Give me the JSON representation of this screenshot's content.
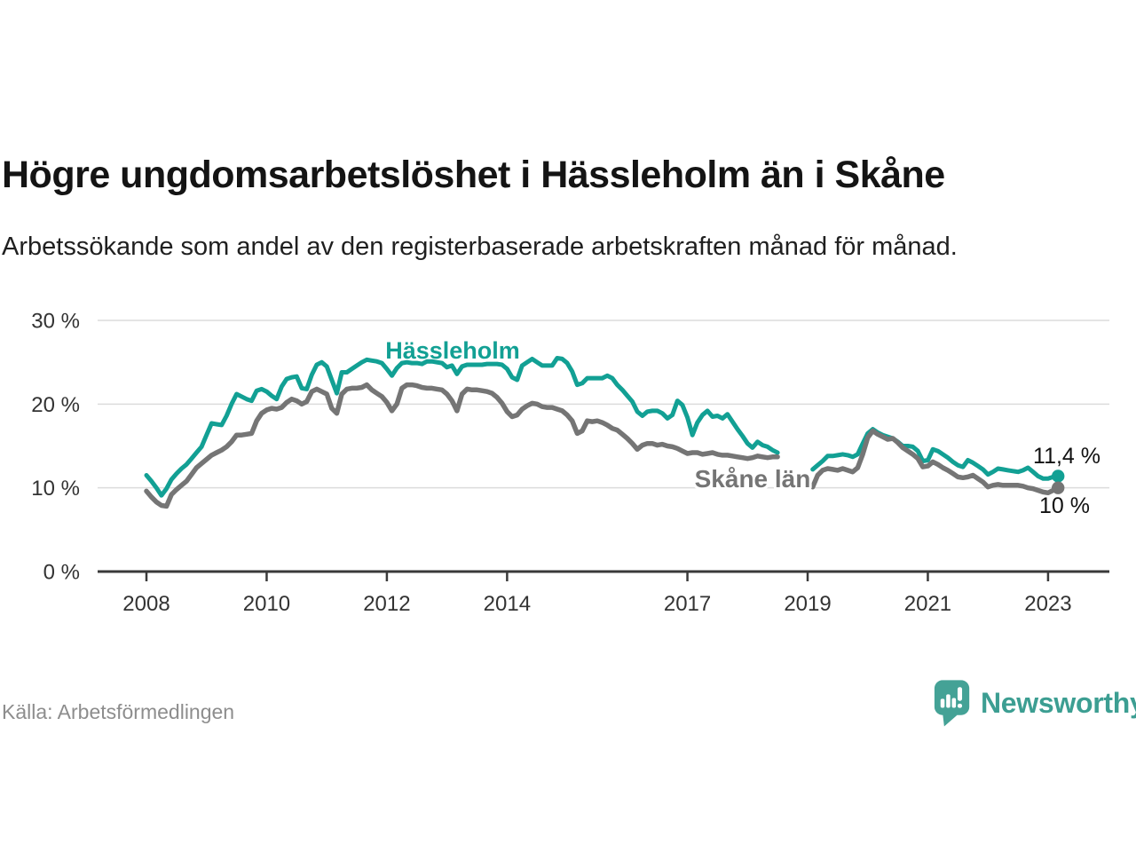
{
  "header": {
    "title": "Högre ungdomsarbetslöshet i Hässleholm än i Skåne",
    "subtitle": "Arbetssökande som andel av den registerbaserade arbetskraften månad för månad."
  },
  "footer": {
    "source": "Källa: Arbetsförmedlingen",
    "brand": "Newsworthy"
  },
  "colors": {
    "hassleholm_teal": "#12a094",
    "skane_gray": "#757575",
    "axis": "#3a3a3a",
    "grid": "#dcdcdc",
    "tick_label": "#333333",
    "value_label": "#111111",
    "source_gray": "#8d8d8d",
    "brand_teal": "#3c9e92"
  },
  "chart_data": {
    "type": "line",
    "x_start": "2008-01",
    "x_end": "2023-03",
    "x_tick_years": [
      2008,
      2010,
      2012,
      2014,
      2017,
      2019,
      2021,
      2023
    ],
    "y_ticks": [
      0,
      10,
      20,
      30
    ],
    "y_tick_suffix": " %",
    "ylim": [
      0,
      31
    ],
    "grid": true,
    "legend_position": "inline",
    "series": [
      {
        "name": "Hässleholm",
        "color": "#12a094",
        "end_label": "11,4 %",
        "values": [
          11.5,
          10.8,
          10.0,
          9.1,
          9.9,
          11.0,
          11.7,
          12.3,
          12.8,
          13.5,
          14.2,
          14.9,
          16.3,
          17.7,
          17.6,
          17.5,
          18.6,
          20.0,
          21.2,
          20.9,
          20.6,
          20.4,
          21.6,
          21.8,
          21.5,
          21.0,
          20.6,
          22.1,
          23.0,
          23.2,
          23.3,
          21.9,
          21.8,
          23.5,
          24.7,
          25.0,
          24.5,
          22.9,
          21.3,
          23.8,
          23.8,
          24.2,
          24.6,
          25.0,
          25.3,
          25.2,
          25.1,
          24.9,
          24.2,
          23.4,
          24.3,
          24.9,
          25.0,
          24.9,
          24.9,
          24.8,
          25.1,
          25.1,
          25.0,
          24.9,
          24.4,
          24.6,
          23.6,
          24.5,
          24.7,
          24.7,
          24.7,
          24.7,
          24.8,
          24.8,
          24.8,
          24.7,
          24.2,
          23.2,
          22.9,
          24.6,
          25.0,
          25.4,
          25.0,
          24.6,
          24.6,
          24.6,
          25.5,
          25.4,
          24.9,
          23.9,
          22.3,
          22.5,
          23.1,
          23.1,
          23.1,
          23.1,
          23.4,
          23.1,
          22.3,
          21.7,
          21.0,
          20.3,
          19.1,
          18.6,
          19.1,
          19.2,
          19.2,
          18.9,
          18.3,
          18.7,
          20.4,
          19.9,
          18.4,
          16.3,
          17.8,
          18.7,
          19.2,
          18.5,
          18.6,
          18.3,
          18.8,
          17.9,
          17.0,
          16.2,
          15.3,
          14.8,
          15.5,
          15.1,
          14.9,
          14.5,
          14.2,
          null,
          null,
          null,
          null,
          null,
          null,
          12.2,
          12.7,
          13.2,
          13.8,
          13.8,
          13.9,
          14.0,
          13.9,
          13.7,
          14.0,
          15.3,
          16.5,
          17.0,
          16.6,
          16.3,
          16.1,
          15.9,
          15.5,
          15.0,
          15.0,
          14.9,
          14.4,
          13.2,
          13.3,
          14.6,
          14.4,
          14.0,
          13.6,
          13.1,
          12.7,
          12.5,
          13.3,
          13.0,
          12.6,
          12.2,
          11.6,
          11.9,
          12.3,
          12.2,
          12.1,
          12.0,
          11.9,
          12.1,
          12.4,
          11.9,
          11.4,
          11.1,
          11.1,
          11.3,
          11.4
        ]
      },
      {
        "name": "Skåne län",
        "color": "#757575",
        "end_label": "10 %",
        "values": [
          9.6,
          8.9,
          8.3,
          7.9,
          7.8,
          9.2,
          9.8,
          10.3,
          10.8,
          11.6,
          12.4,
          12.9,
          13.4,
          13.9,
          14.2,
          14.5,
          14.9,
          15.5,
          16.3,
          16.3,
          16.4,
          16.5,
          18.0,
          18.9,
          19.3,
          19.5,
          19.4,
          19.6,
          20.2,
          20.6,
          20.4,
          20.0,
          20.3,
          21.5,
          21.8,
          21.5,
          21.2,
          19.5,
          18.9,
          21.2,
          21.8,
          21.9,
          21.9,
          22.0,
          22.3,
          21.7,
          21.3,
          20.9,
          20.2,
          19.2,
          20.0,
          21.9,
          22.3,
          22.3,
          22.2,
          22.0,
          21.9,
          21.9,
          21.8,
          21.7,
          21.2,
          20.4,
          19.2,
          21.2,
          21.8,
          21.7,
          21.7,
          21.6,
          21.5,
          21.3,
          20.8,
          20.1,
          19.1,
          18.5,
          18.7,
          19.4,
          19.8,
          20.1,
          20.0,
          19.7,
          19.6,
          19.6,
          19.4,
          19.2,
          18.7,
          18.0,
          16.5,
          16.8,
          18.0,
          17.9,
          18.0,
          17.8,
          17.5,
          17.1,
          16.9,
          16.4,
          15.9,
          15.3,
          14.6,
          15.1,
          15.3,
          15.3,
          15.1,
          15.2,
          15.0,
          14.9,
          14.7,
          14.4,
          14.1,
          14.2,
          14.2,
          14.0,
          14.1,
          14.2,
          14.0,
          13.9,
          13.9,
          13.8,
          13.7,
          13.6,
          13.5,
          13.6,
          13.8,
          13.7,
          13.6,
          13.7,
          13.7,
          null,
          null,
          null,
          null,
          null,
          10.7,
          10.1,
          11.5,
          12.1,
          12.3,
          12.2,
          12.1,
          12.3,
          12.1,
          11.9,
          12.4,
          14.0,
          16.0,
          16.8,
          16.4,
          16.1,
          15.8,
          15.9,
          15.4,
          14.8,
          14.4,
          14.0,
          13.5,
          12.5,
          12.6,
          13.1,
          12.8,
          12.4,
          12.1,
          11.7,
          11.3,
          11.2,
          11.3,
          11.5,
          11.1,
          10.7,
          10.1,
          10.3,
          10.4,
          10.3,
          10.3,
          10.3,
          10.3,
          10.2,
          10.0,
          9.9,
          9.7,
          9.5,
          9.4,
          9.7,
          10.0
        ]
      }
    ]
  }
}
